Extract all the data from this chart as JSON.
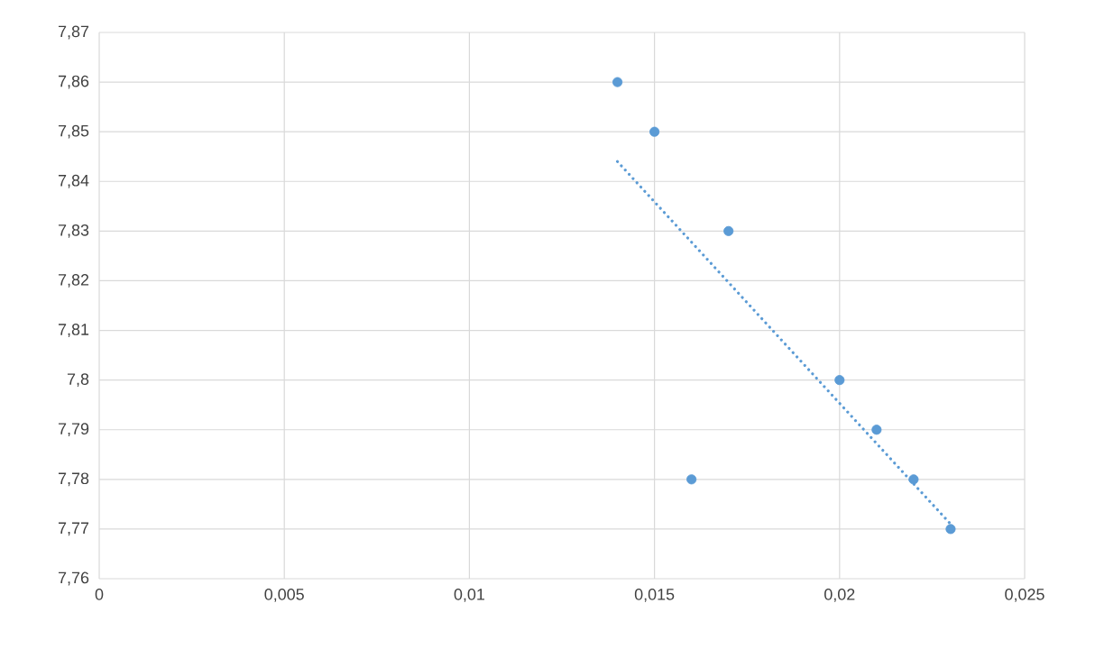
{
  "chart_data": {
    "type": "scatter",
    "marker": "circle",
    "grid": true,
    "xlim": [
      0,
      0.025
    ],
    "ylim": [
      7.76,
      7.87
    ],
    "xticks": [
      {
        "value": 0,
        "label": "0"
      },
      {
        "value": 0.005,
        "label": "0,005"
      },
      {
        "value": 0.01,
        "label": "0,01"
      },
      {
        "value": 0.015,
        "label": "0,015"
      },
      {
        "value": 0.02,
        "label": "0,02"
      },
      {
        "value": 0.025,
        "label": "0,025"
      }
    ],
    "yticks": [
      {
        "value": 7.76,
        "label": "7,76"
      },
      {
        "value": 7.77,
        "label": "7,77"
      },
      {
        "value": 7.78,
        "label": "7,78"
      },
      {
        "value": 7.79,
        "label": "7,79"
      },
      {
        "value": 7.8,
        "label": "7,8"
      },
      {
        "value": 7.81,
        "label": "7,81"
      },
      {
        "value": 7.82,
        "label": "7,82"
      },
      {
        "value": 7.83,
        "label": "7,83"
      },
      {
        "value": 7.84,
        "label": "7,84"
      },
      {
        "value": 7.85,
        "label": "7,85"
      },
      {
        "value": 7.86,
        "label": "7,86"
      },
      {
        "value": 7.87,
        "label": "7,87"
      }
    ],
    "series": [
      {
        "color": "#5b9bd5",
        "x": [
          0.014,
          0.015,
          0.016,
          0.017,
          0.02,
          0.021,
          0.022,
          0.023
        ],
        "values": [
          7.86,
          7.85,
          7.78,
          7.83,
          7.8,
          7.79,
          7.78,
          7.77
        ]
      },
      {
        "type": "line",
        "color": "#5b9bd5",
        "marker": "none",
        "line_style": "dotted",
        "x": [
          0.014,
          0.023
        ],
        "values": [
          7.844,
          7.771
        ]
      }
    ]
  }
}
